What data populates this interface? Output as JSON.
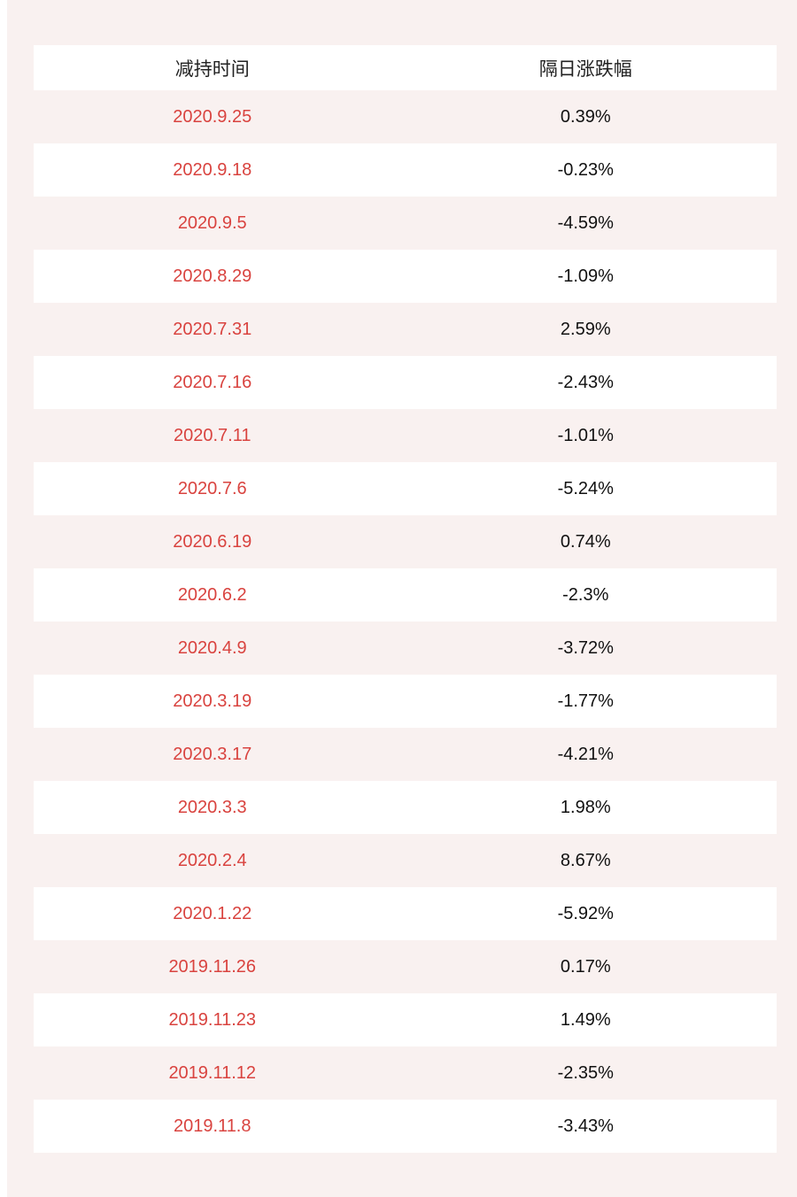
{
  "colors": {
    "page_pink": "#f9f1f0",
    "row_white": "#ffffff",
    "date_red": "#d9433f",
    "value_black": "#111111"
  },
  "chart_data": {
    "type": "table",
    "columns": [
      "减持时间",
      "隔日涨跌幅"
    ],
    "rows": [
      {
        "date": "2020.9.25",
        "change": "0.39%"
      },
      {
        "date": "2020.9.18",
        "change": "-0.23%"
      },
      {
        "date": "2020.9.5",
        "change": "-4.59%"
      },
      {
        "date": "2020.8.29",
        "change": "-1.09%"
      },
      {
        "date": "2020.7.31",
        "change": "2.59%"
      },
      {
        "date": "2020.7.16",
        "change": "-2.43%"
      },
      {
        "date": "2020.7.11",
        "change": "-1.01%"
      },
      {
        "date": "2020.7.6",
        "change": "-5.24%"
      },
      {
        "date": "2020.6.19",
        "change": "0.74%"
      },
      {
        "date": "2020.6.2",
        "change": "-2.3%"
      },
      {
        "date": "2020.4.9",
        "change": "-3.72%"
      },
      {
        "date": "2020.3.19",
        "change": "-1.77%"
      },
      {
        "date": "2020.3.17",
        "change": "-4.21%"
      },
      {
        "date": "2020.3.3",
        "change": "1.98%"
      },
      {
        "date": "2020.2.4",
        "change": "8.67%"
      },
      {
        "date": "2020.1.22",
        "change": "-5.92%"
      },
      {
        "date": "2019.11.26",
        "change": "0.17%"
      },
      {
        "date": "2019.11.23",
        "change": "1.49%"
      },
      {
        "date": "2019.11.12",
        "change": "-2.35%"
      },
      {
        "date": "2019.11.8",
        "change": "-3.43%"
      }
    ],
    "layout": {
      "row_striping": "even rows pink (page background), odd rows white, header white",
      "alignment": "both columns center-aligned"
    }
  }
}
